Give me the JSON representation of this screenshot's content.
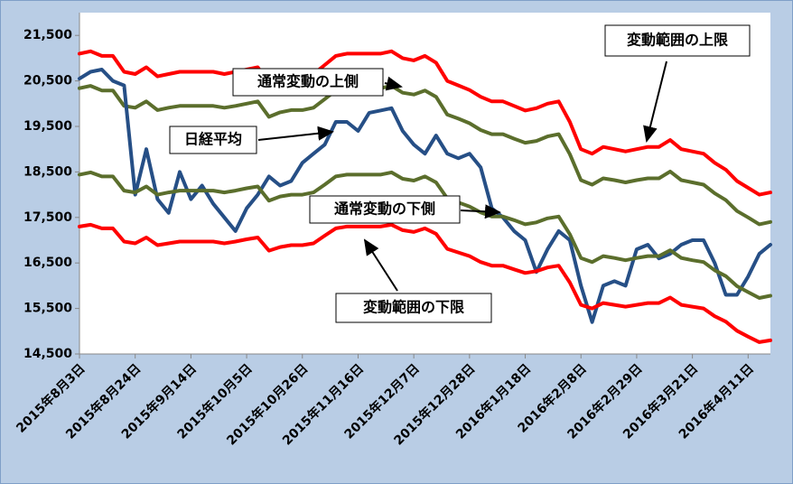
{
  "chart_data": {
    "type": "line",
    "categories": [
      "2015年8月3日",
      null,
      null,
      null,
      null,
      "2015年8月24日",
      null,
      null,
      null,
      null,
      "2015年9月14日",
      null,
      null,
      null,
      null,
      "2015年10月5日",
      null,
      null,
      null,
      null,
      "2015年10月26日",
      null,
      null,
      null,
      null,
      "2015年11月16日",
      null,
      null,
      null,
      null,
      "2015年12月7日",
      null,
      null,
      null,
      null,
      "2015年12月28日",
      null,
      null,
      null,
      null,
      "2016年1月18日",
      null,
      null,
      null,
      null,
      "2016年2月8日",
      null,
      null,
      null,
      null,
      "2016年2月29日",
      null,
      null,
      null,
      null,
      "2016年3月21日",
      null,
      null,
      null,
      null,
      "2016年4月11日",
      null,
      null
    ],
    "series": [
      {
        "name": "変動範囲の上限",
        "color": "#ff0000",
        "values": [
          21100,
          21150,
          21050,
          21050,
          20700,
          20650,
          20800,
          20600,
          20650,
          20700,
          20700,
          20700,
          20700,
          20650,
          20700,
          20750,
          20800,
          20450,
          20550,
          20600,
          20600,
          20650,
          20850,
          21050,
          21100,
          21100,
          21100,
          21100,
          21150,
          21000,
          20950,
          21050,
          20900,
          20500,
          20400,
          20300,
          20150,
          20050,
          20050,
          19950,
          19850,
          19900,
          20000,
          20050,
          19600,
          19000,
          18900,
          19050,
          19000,
          18950,
          19000,
          19050,
          19050,
          19200,
          19000,
          18950,
          18900,
          18700,
          18550,
          18300,
          18150,
          18000,
          18050
        ]
      },
      {
        "name": "通常変動の上側",
        "color": "#5b6e2c",
        "values": [
          20340,
          20390,
          20290,
          20290,
          19950,
          19910,
          20050,
          19860,
          19910,
          19950,
          19950,
          19950,
          19950,
          19910,
          19950,
          20000,
          20050,
          19710,
          19810,
          19860,
          19860,
          19910,
          20100,
          20290,
          20340,
          20340,
          20340,
          20340,
          20390,
          20240,
          20200,
          20290,
          20150,
          19760,
          19670,
          19570,
          19420,
          19330,
          19330,
          19230,
          19140,
          19180,
          19280,
          19330,
          18890,
          18320,
          18220,
          18360,
          18320,
          18270,
          18320,
          18360,
          18360,
          18510,
          18320,
          18270,
          18220,
          18030,
          17880,
          17640,
          17500,
          17350,
          17400
        ]
      },
      {
        "name": "日経平均",
        "color": "#264f86",
        "values": [
          20550,
          20700,
          20750,
          20500,
          20400,
          18000,
          19000,
          17900,
          17600,
          18500,
          17900,
          18200,
          17800,
          17500,
          17200,
          17700,
          18000,
          18400,
          18200,
          18300,
          18700,
          18900,
          19100,
          19600,
          19600,
          19400,
          19800,
          19850,
          19900,
          19400,
          19100,
          18900,
          19300,
          18900,
          18800,
          18900,
          18600,
          17700,
          17500,
          17200,
          17000,
          16300,
          16800,
          17200,
          17000,
          16000,
          15200,
          16000,
          16100,
          16000,
          16800,
          16900,
          16600,
          16700,
          16900,
          17000,
          17000,
          16500,
          15800,
          15800,
          16200,
          16700,
          16900
        ]
      },
      {
        "name": "通常変動の下側",
        "color": "#5b6e2c",
        "values": [
          18440,
          18490,
          18400,
          18400,
          18090,
          18050,
          18180,
          18000,
          18050,
          18090,
          18090,
          18090,
          18090,
          18050,
          18090,
          18140,
          18180,
          17870,
          17960,
          18000,
          18000,
          18050,
          18220,
          18400,
          18440,
          18440,
          18440,
          18440,
          18490,
          18350,
          18310,
          18400,
          18270,
          17920,
          17830,
          17740,
          17610,
          17520,
          17520,
          17440,
          17350,
          17390,
          17480,
          17520,
          17130,
          16610,
          16520,
          16650,
          16610,
          16560,
          16610,
          16650,
          16650,
          16780,
          16610,
          16560,
          16520,
          16340,
          16210,
          15990,
          15860,
          15730,
          15780
        ]
      },
      {
        "name": "変動範囲の下限",
        "color": "#ff0000",
        "values": [
          17300,
          17340,
          17260,
          17260,
          16970,
          16930,
          17060,
          16890,
          16930,
          16970,
          16970,
          16970,
          16970,
          16930,
          16970,
          17020,
          17060,
          16770,
          16850,
          16890,
          16890,
          16930,
          17100,
          17260,
          17300,
          17300,
          17300,
          17300,
          17340,
          17220,
          17180,
          17260,
          17140,
          16810,
          16730,
          16650,
          16520,
          16440,
          16440,
          16360,
          16280,
          16320,
          16400,
          16440,
          16070,
          15580,
          15500,
          15620,
          15580,
          15540,
          15580,
          15620,
          15620,
          15740,
          15580,
          15540,
          15500,
          15330,
          15210,
          15010,
          14880,
          14760,
          14800
        ]
      }
    ],
    "ylim": [
      14500,
      22000
    ],
    "yticks": [
      {
        "value": 14500,
        "label": "14,500"
      },
      {
        "value": 15500,
        "label": "15,500"
      },
      {
        "value": 16500,
        "label": "16,500"
      },
      {
        "value": 17500,
        "label": "17,500"
      },
      {
        "value": 18500,
        "label": "18,500"
      },
      {
        "value": 19500,
        "label": "19,500"
      },
      {
        "value": 20500,
        "label": "20,500"
      },
      {
        "value": 21500,
        "label": "21,500"
      }
    ],
    "grid": false
  }
}
